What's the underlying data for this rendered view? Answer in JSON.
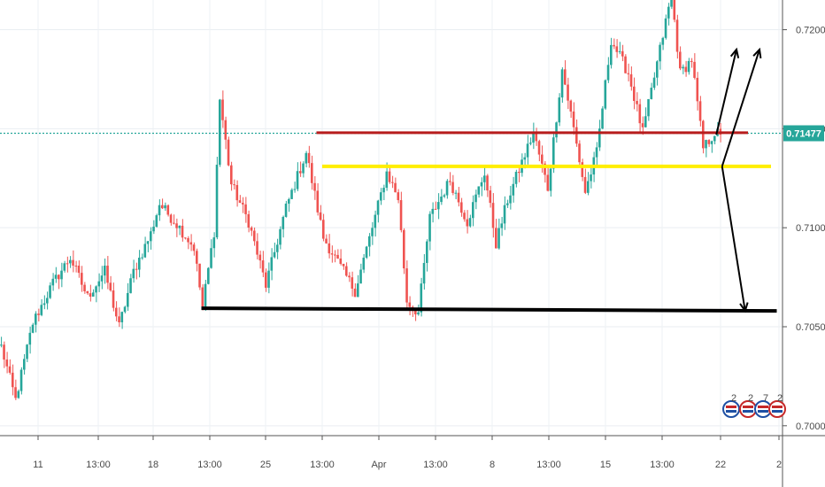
{
  "chart_data": {
    "type": "candlestick",
    "title": "",
    "xlabel": "",
    "ylabel": "",
    "ylim": [
      0.6995,
      0.7215
    ],
    "y_ticks": [
      "0.72000",
      "0.71500",
      "0.71000",
      "0.70500",
      "0.70000"
    ],
    "y_tick_values": [
      0.72,
      0.715,
      0.71,
      0.705,
      0.7
    ],
    "x_ticks": [
      "11",
      "13:00",
      "18",
      "13:00",
      "25",
      "13:00",
      "Apr",
      "13:00",
      "8",
      "13:00",
      "15",
      "13:00",
      "22",
      "2"
    ],
    "last_price": "0.71477",
    "last_price_value": 0.71477,
    "colors": {
      "up": "#26a69a",
      "down": "#ef5350",
      "resistance": "#b71c1c",
      "pivot": "#ffee00",
      "support": "#000000",
      "projection": "#000000",
      "last_price_line": "#26a69a"
    },
    "horizontal_levels": [
      {
        "name": "resistance",
        "value": 0.7148,
        "from_index": 110,
        "to_index": 260
      },
      {
        "name": "pivot",
        "value": 0.7131,
        "from_index": 112,
        "to_index": 268
      },
      {
        "name": "support",
        "value": 0.7058,
        "from_index": 70,
        "to_index": 270
      }
    ],
    "projection_arrows": [
      {
        "from": [
          249,
          0.7147
        ],
        "to": [
          256,
          0.719
        ]
      },
      {
        "from": [
          251,
          0.7131
        ],
        "to": [
          264,
          0.719
        ]
      },
      {
        "from": [
          251,
          0.7131
        ],
        "to": [
          259,
          0.7058
        ]
      }
    ],
    "anchors": [
      [
        0,
        0.704
      ],
      [
        5,
        0.7013
      ],
      [
        11,
        0.7052
      ],
      [
        18,
        0.7072
      ],
      [
        24,
        0.7085
      ],
      [
        30,
        0.7065
      ],
      [
        36,
        0.7078
      ],
      [
        41,
        0.705
      ],
      [
        46,
        0.7078
      ],
      [
        52,
        0.7097
      ],
      [
        55,
        0.7112
      ],
      [
        61,
        0.7102
      ],
      [
        67,
        0.709
      ],
      [
        70,
        0.706
      ],
      [
        74,
        0.7098
      ],
      [
        76,
        0.7165
      ],
      [
        80,
        0.7122
      ],
      [
        86,
        0.7103
      ],
      [
        92,
        0.7071
      ],
      [
        99,
        0.711
      ],
      [
        106,
        0.7138
      ],
      [
        112,
        0.7095
      ],
      [
        118,
        0.708
      ],
      [
        123,
        0.7068
      ],
      [
        129,
        0.71
      ],
      [
        134,
        0.7128
      ],
      [
        138,
        0.7115
      ],
      [
        141,
        0.7063
      ],
      [
        145,
        0.7057
      ],
      [
        149,
        0.7105
      ],
      [
        156,
        0.7124
      ],
      [
        162,
        0.7103
      ],
      [
        168,
        0.7128
      ],
      [
        172,
        0.7092
      ],
      [
        176,
        0.7114
      ],
      [
        181,
        0.7133
      ],
      [
        185,
        0.7148
      ],
      [
        190,
        0.712
      ],
      [
        195,
        0.718
      ],
      [
        199,
        0.715
      ],
      [
        203,
        0.7118
      ],
      [
        207,
        0.7138
      ],
      [
        212,
        0.7195
      ],
      [
        218,
        0.7178
      ],
      [
        223,
        0.7148
      ],
      [
        229,
        0.719
      ],
      [
        233,
        0.7218
      ],
      [
        236,
        0.7178
      ],
      [
        240,
        0.7185
      ],
      [
        244,
        0.714
      ],
      [
        248,
        0.7148
      ],
      [
        250,
        0.7147
      ]
    ]
  },
  "legend_badges": [
    "2",
    "2",
    "7",
    "2"
  ]
}
